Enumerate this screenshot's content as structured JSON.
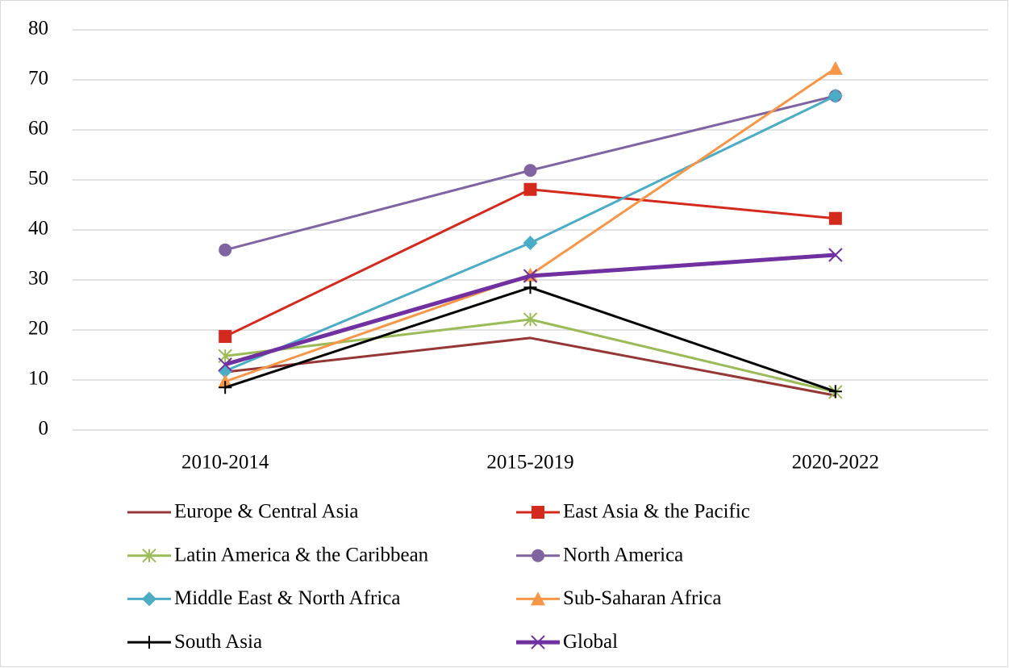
{
  "chart_data": {
    "type": "line",
    "categories": [
      "2010-2014",
      "2015-2019",
      "2020-2022"
    ],
    "ylim": [
      0,
      80
    ],
    "yticks": [
      0,
      10,
      20,
      30,
      40,
      50,
      60,
      70,
      80
    ],
    "grid": true,
    "series": [
      {
        "name": "Europe & Central Asia",
        "color": "#953735",
        "marker": "none",
        "line_width": 3,
        "values": [
          11.6,
          18.4,
          6.9
        ]
      },
      {
        "name": "East Asia & the Pacific",
        "color": "#d42a1e",
        "marker": "square",
        "line_width": 3,
        "values": [
          18.7,
          48.1,
          42.3
        ]
      },
      {
        "name": "Latin America & the Caribbean",
        "color": "#9bbb59",
        "marker": "asterisk",
        "line_width": 3,
        "values": [
          14.8,
          22.1,
          7.6
        ]
      },
      {
        "name": "North America",
        "color": "#8064a2",
        "marker": "circle",
        "line_width": 3,
        "values": [
          36.0,
          51.9,
          66.8
        ]
      },
      {
        "name": "Middle East & North Africa",
        "color": "#4bacc6",
        "marker": "diamond",
        "line_width": 3,
        "values": [
          11.8,
          37.4,
          66.8
        ]
      },
      {
        "name": "Sub-Saharan Africa",
        "color": "#f79646",
        "marker": "triangle",
        "line_width": 3,
        "values": [
          9.7,
          31.0,
          72.3
        ]
      },
      {
        "name": "South Asia",
        "color": "#000000",
        "marker": "plus",
        "line_width": 3,
        "values": [
          8.5,
          28.5,
          7.7
        ]
      },
      {
        "name": "Global",
        "color": "#7030a0",
        "marker": "x",
        "line_width": 5,
        "values": [
          13.1,
          30.8,
          35.0
        ]
      }
    ]
  }
}
